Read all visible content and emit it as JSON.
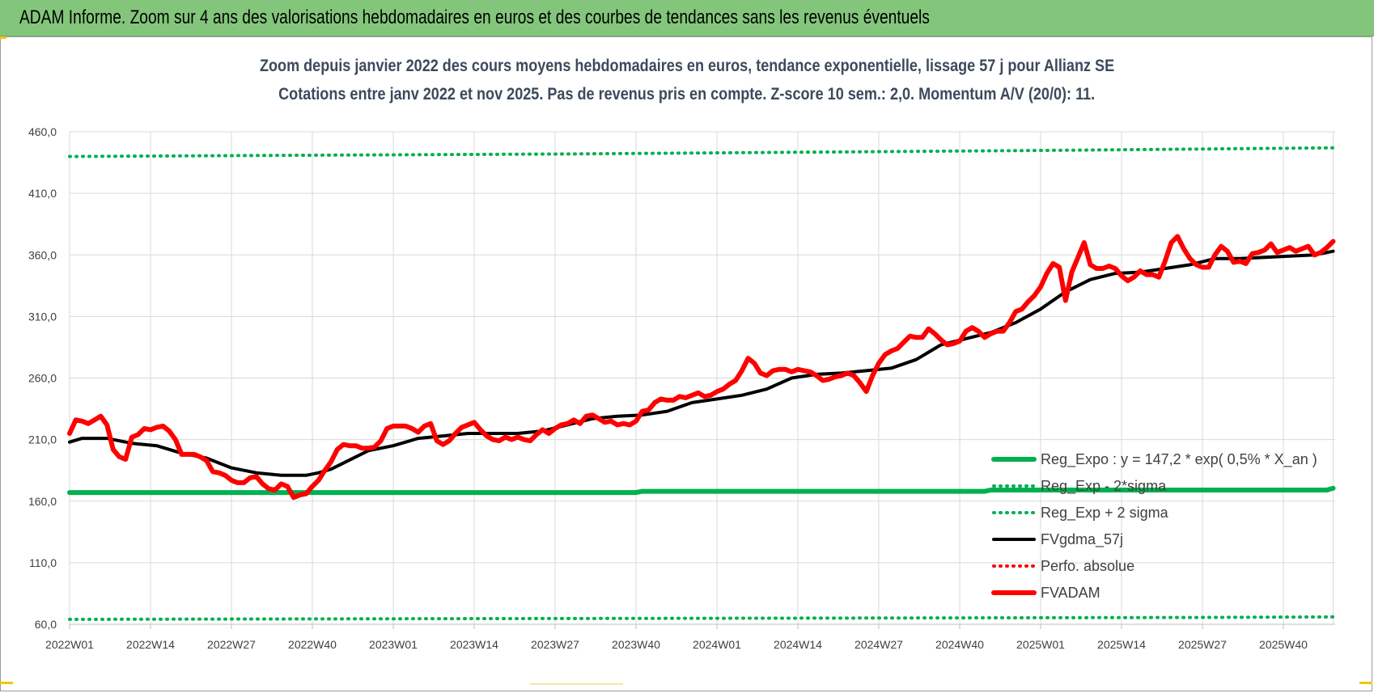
{
  "banner": {
    "title": "ADAM Informe. Zoom sur 4 ans des valorisations hebdomadaires en euros et des courbes de tendances sans les revenus éventuels"
  },
  "colors": {
    "banner_bg": "#83c67b",
    "green": "#00b050",
    "black": "#000000",
    "red": "#ff0000"
  },
  "chart_data": {
    "type": "line",
    "title": "Zoom depuis janvier 2022 des cours moyens hebdomadaires en euros, tendance exponentielle, lissage 57 j pour Allianz SE",
    "subtitle": "Cotations entre janv 2022 et nov 2025. Pas de revenus pris en compte. Z-score 10 sem.: 2,0. Momentum A/V (20/0): 11.",
    "xlabel": "",
    "ylabel": "",
    "ylim": [
      60,
      460
    ],
    "yticks": [
      "60,0",
      "110,0",
      "160,0",
      "210,0",
      "260,0",
      "310,0",
      "360,0",
      "410,0",
      "460,0"
    ],
    "x_tick_labels": [
      "2022W01",
      "2022W14",
      "2022W27",
      "2022W40",
      "2023W01",
      "2023W14",
      "2023W27",
      "2023W40",
      "2024W01",
      "2024W14",
      "2024W27",
      "2024W40",
      "2025W01",
      "2025W14",
      "2025W27",
      "2025W40"
    ],
    "x_unit": "week index from 2022W01 (13 weeks per tick)",
    "grid": true,
    "legend_position": "bottom-right",
    "series": [
      {
        "name": "Reg_Expo : y = 147,2 * exp( 0,5% *  X_an )",
        "style": "solid-thick",
        "color": "#00b050",
        "x": [
          0,
          91,
          92,
          147,
          148,
          202,
          203
        ],
        "y": [
          167,
          167,
          168,
          168,
          169,
          169,
          170.5
        ]
      },
      {
        "name": "Reg_Exp - 2*sigma",
        "style": "dotted",
        "color": "#00b050",
        "x": [
          0,
          60,
          120,
          180,
          203
        ],
        "y": [
          64,
          64.5,
          65,
          65.5,
          66
        ]
      },
      {
        "name": "Reg_Exp + 2 sigma",
        "style": "dotted",
        "color": "#00b050",
        "x": [
          0,
          40,
          80,
          120,
          160,
          203
        ],
        "y": [
          440,
          441,
          442,
          443.5,
          445,
          447
        ]
      },
      {
        "name": "FVgdma_57j",
        "style": "solid",
        "color": "#000000",
        "x": [
          0,
          2,
          6,
          10,
          14,
          18,
          22,
          26,
          30,
          34,
          36,
          38,
          40,
          42,
          44,
          48,
          52,
          56,
          60,
          64,
          68,
          72,
          76,
          80,
          84,
          88,
          92,
          96,
          100,
          104,
          108,
          112,
          116,
          120,
          124,
          128,
          132,
          136,
          140,
          144,
          148,
          152,
          156,
          160,
          164,
          168,
          172,
          176,
          180,
          184,
          188,
          192,
          196,
          200,
          203
        ],
        "y": [
          208,
          211,
          211,
          207,
          205,
          199,
          195,
          187,
          183,
          181,
          181,
          181,
          183,
          186,
          191,
          201,
          205,
          211,
          213,
          215,
          215,
          215,
          217,
          222,
          227,
          229,
          230,
          233,
          240,
          243,
          246,
          251,
          260,
          263,
          264,
          266,
          268,
          275,
          287,
          292,
          297,
          305,
          316,
          330,
          340,
          345,
          346,
          349,
          352,
          357,
          357,
          358,
          359,
          360,
          363
        ]
      },
      {
        "name": "Perfo. absolue",
        "style": "dotted",
        "color": "#ff0000",
        "x": [],
        "y": []
      },
      {
        "name": "FVADAM",
        "style": "solid-thick",
        "color": "#ff0000",
        "x": [
          0,
          1,
          2,
          3,
          4,
          5,
          6,
          7,
          8,
          9,
          10,
          11,
          12,
          13,
          14,
          15,
          16,
          17,
          18,
          19,
          20,
          21,
          22,
          23,
          24,
          25,
          26,
          27,
          28,
          29,
          30,
          31,
          32,
          33,
          34,
          35,
          36,
          37,
          38,
          39,
          40,
          41,
          42,
          43,
          44,
          45,
          46,
          47,
          48,
          49,
          50,
          51,
          52,
          53,
          54,
          55,
          56,
          57,
          58,
          59,
          60,
          61,
          62,
          63,
          64,
          65,
          66,
          67,
          68,
          69,
          70,
          71,
          72,
          73,
          74,
          75,
          76,
          77,
          78,
          79,
          80,
          81,
          82,
          83,
          84,
          85,
          86,
          87,
          88,
          89,
          90,
          91,
          92,
          93,
          94,
          95,
          96,
          97,
          98,
          99,
          100,
          101,
          102,
          103,
          104,
          105,
          106,
          107,
          108,
          109,
          110,
          111,
          112,
          113,
          114,
          115,
          116,
          117,
          118,
          119,
          120,
          121,
          122,
          123,
          124,
          125,
          126,
          127,
          128,
          129,
          130,
          131,
          132,
          133,
          134,
          135,
          136,
          137,
          138,
          139,
          140,
          141,
          142,
          143,
          144,
          145,
          146,
          147,
          148,
          149,
          150,
          151,
          152,
          153,
          154,
          155,
          156,
          157,
          158,
          159,
          160,
          161,
          162,
          163,
          164,
          165,
          166,
          167,
          168,
          169,
          170,
          171,
          172,
          173,
          174,
          175,
          176,
          177,
          178,
          179,
          180,
          181,
          182,
          183,
          184,
          185,
          186,
          187,
          188,
          189,
          190,
          191,
          192,
          193,
          194,
          195,
          196,
          197,
          198,
          199,
          200,
          201,
          202,
          203
        ],
        "y": [
          215,
          226,
          225,
          223,
          226,
          229,
          222,
          202,
          196,
          194,
          212,
          214,
          219,
          218,
          220,
          221,
          217,
          210,
          198,
          198,
          198,
          196,
          193,
          184,
          183,
          181,
          177,
          175,
          175,
          179,
          180,
          174,
          170,
          169,
          174,
          172,
          163,
          165,
          166,
          172,
          177,
          185,
          192,
          202,
          206,
          205,
          205,
          203,
          203,
          204,
          209,
          219,
          221,
          221,
          221,
          219,
          216,
          221,
          223,
          209,
          206,
          209,
          215,
          220,
          222,
          224,
          218,
          213,
          210,
          209,
          212,
          210,
          212,
          210,
          209,
          214,
          218,
          215,
          219,
          222,
          223,
          226,
          223,
          229,
          230,
          227,
          224,
          225,
          222,
          223,
          222,
          225,
          233,
          234,
          240,
          243,
          242,
          242,
          245,
          244,
          246,
          248,
          245,
          246,
          249,
          251,
          255,
          258,
          266,
          276,
          272,
          264,
          262,
          266,
          267,
          267,
          265,
          267,
          266,
          265,
          262,
          258,
          259,
          261,
          262,
          264,
          262,
          256,
          249,
          262,
          272,
          279,
          282,
          284,
          289,
          294,
          293,
          293,
          300,
          296,
          291,
          287,
          288,
          290,
          298,
          301,
          298,
          293,
          296,
          298,
          298,
          305,
          314,
          316,
          322,
          327,
          334,
          345,
          353,
          350,
          323,
          346,
          358,
          370,
          352,
          349,
          349,
          351,
          349,
          343,
          339,
          342,
          347,
          344,
          344,
          342,
          355,
          370,
          375,
          365,
          357,
          352,
          350,
          350,
          360,
          367,
          363,
          354,
          355,
          353,
          361,
          362,
          364,
          369,
          362,
          364,
          366,
          363,
          365,
          367,
          360,
          362,
          366,
          371
        ]
      }
    ]
  }
}
